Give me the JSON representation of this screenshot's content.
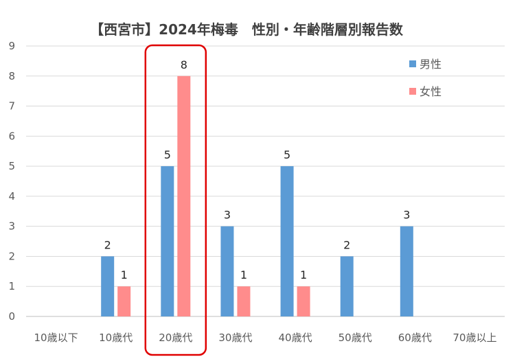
{
  "chart_data": {
    "type": "bar",
    "title": "【西宮市】2024年梅毒　性別・年齢階層別報告数",
    "categories": [
      "10歳以下",
      "10歳代",
      "20歳代",
      "30歳代",
      "40歳代",
      "50歳代",
      "60歳代",
      "70歳以上"
    ],
    "series": [
      {
        "name": "男性",
        "color": "#5B9BD5",
        "values": [
          0,
          2,
          5,
          3,
          5,
          2,
          3,
          0
        ]
      },
      {
        "name": "女性",
        "color": "#FF8C8C",
        "values": [
          0,
          1,
          8,
          1,
          1,
          0,
          0,
          0
        ]
      }
    ],
    "ylim": [
      0,
      9
    ],
    "yticks": [
      0,
      1,
      2,
      3,
      4,
      5,
      6,
      7,
      8,
      9
    ],
    "grid": true,
    "legend_position": "top-right",
    "highlight_category": "20歳代",
    "highlight_color": "#E00000"
  }
}
